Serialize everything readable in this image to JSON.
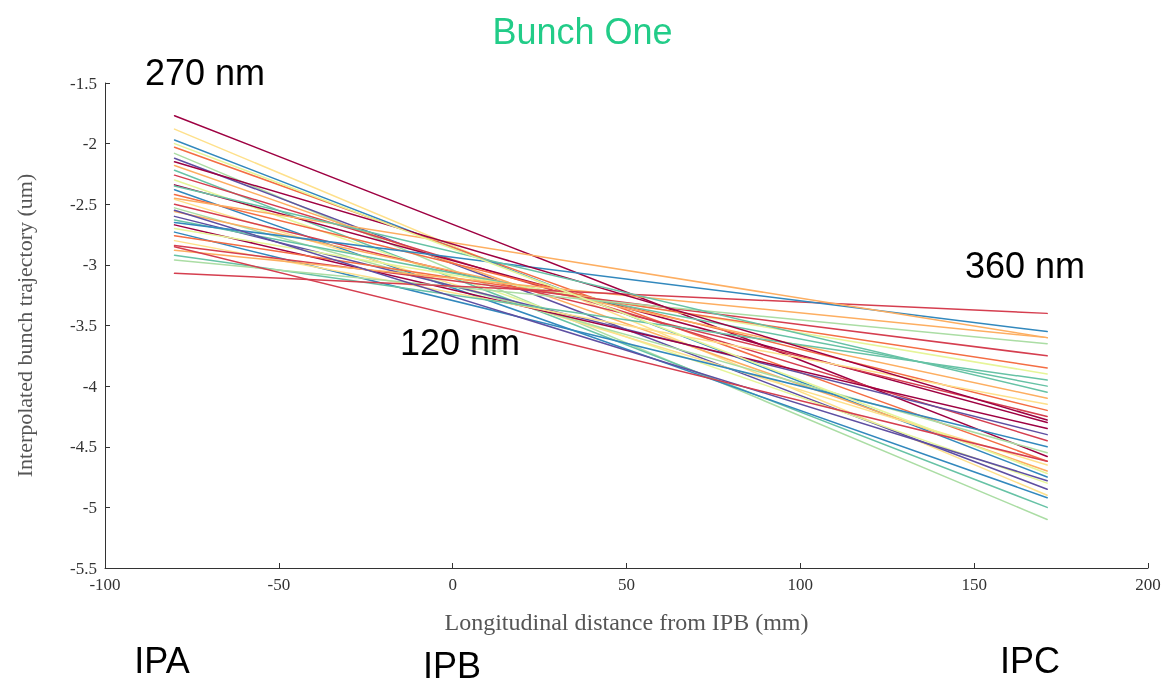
{
  "chart_data": {
    "type": "line",
    "title": "Bunch One",
    "xlabel": "Longitudinal distance from IPB (mm)",
    "ylabel": "Interpolated bunch trajectory (um)",
    "annotations": [
      "270 nm",
      "120 nm",
      "360 nm",
      "IPA",
      "IPB",
      "IPC"
    ],
    "xlim": [
      -100,
      200
    ],
    "xticks": [
      -100,
      -50,
      0,
      50,
      100,
      150,
      200
    ],
    "ylim": [
      -5.5,
      -1.5
    ],
    "yticks": [
      -5.5,
      -5,
      -4.5,
      -4,
      -3.5,
      -3,
      -2.5,
      -2,
      -1.5
    ],
    "grid": false,
    "x": [
      -80,
      171
    ],
    "marker": "none",
    "line_style": "solid",
    "series": [
      {
        "values": [
          -1.77,
          -4.58
        ],
        "color": "#9e0142"
      },
      {
        "values": [
          -1.88,
          -4.9
        ],
        "color": "#fee08b"
      },
      {
        "values": [
          -1.97,
          -4.75
        ],
        "color": "#3288bd"
      },
      {
        "values": [
          -2.03,
          -4.62
        ],
        "color": "#f46d43"
      },
      {
        "values": [
          -2.08,
          -5.1
        ],
        "color": "#abdda4"
      },
      {
        "values": [
          -2.12,
          -4.85
        ],
        "color": "#5e4fa2"
      },
      {
        "values": [
          -2.18,
          -4.7
        ],
        "color": "#fdae61"
      },
      {
        "values": [
          -2.22,
          -5.0
        ],
        "color": "#66c2a5"
      },
      {
        "values": [
          -2.26,
          -4.45
        ],
        "color": "#d53e4f"
      },
      {
        "values": [
          -2.3,
          -4.8
        ],
        "color": "#e6f598"
      },
      {
        "values": [
          -2.34,
          -4.3
        ],
        "color": "#9e0142"
      },
      {
        "values": [
          -2.38,
          -4.92
        ],
        "color": "#3288bd"
      },
      {
        "values": [
          -2.42,
          -4.2
        ],
        "color": "#f46d43"
      },
      {
        "values": [
          -2.46,
          -4.65
        ],
        "color": "#fee08b"
      },
      {
        "values": [
          -2.5,
          -4.25
        ],
        "color": "#d53e4f"
      },
      {
        "values": [
          -2.53,
          -4.55
        ],
        "color": "#abdda4"
      },
      {
        "values": [
          -2.56,
          -4.1
        ],
        "color": "#fdae61"
      },
      {
        "values": [
          -2.6,
          -4.4
        ],
        "color": "#5e4fa2"
      },
      {
        "values": [
          -2.63,
          -4.0
        ],
        "color": "#66c2a5"
      },
      {
        "values": [
          -2.67,
          -4.35
        ],
        "color": "#9e0142"
      },
      {
        "values": [
          -2.7,
          -3.9
        ],
        "color": "#e6f598"
      },
      {
        "values": [
          -2.73,
          -4.5
        ],
        "color": "#3288bd"
      },
      {
        "values": [
          -2.76,
          -3.85
        ],
        "color": "#f46d43"
      },
      {
        "values": [
          -2.8,
          -4.15
        ],
        "color": "#fee08b"
      },
      {
        "values": [
          -2.84,
          -3.75
        ],
        "color": "#d53e4f"
      },
      {
        "values": [
          -2.88,
          -3.6
        ],
        "color": "#fdae61"
      },
      {
        "values": [
          -2.92,
          -3.95
        ],
        "color": "#66c2a5"
      },
      {
        "values": [
          -2.96,
          -3.65
        ],
        "color": "#abdda4"
      },
      {
        "values": [
          -3.07,
          -3.4
        ],
        "color": "#d53e4f"
      },
      {
        "values": [
          -2.65,
          -3.55
        ],
        "color": "#3288bd"
      },
      {
        "values": [
          -2.45,
          -3.6
        ],
        "color": "#fdae61"
      },
      {
        "values": [
          -2.15,
          -4.28
        ],
        "color": "#9e0142"
      },
      {
        "values": [
          -2.35,
          -4.05
        ],
        "color": "#66c2a5"
      },
      {
        "values": [
          -2.55,
          -4.78
        ],
        "color": "#5e4fa2"
      },
      {
        "values": [
          -2.0,
          -4.72
        ],
        "color": "#e6f598"
      },
      {
        "values": [
          -2.85,
          -4.62
        ],
        "color": "#d53e4f"
      }
    ]
  }
}
